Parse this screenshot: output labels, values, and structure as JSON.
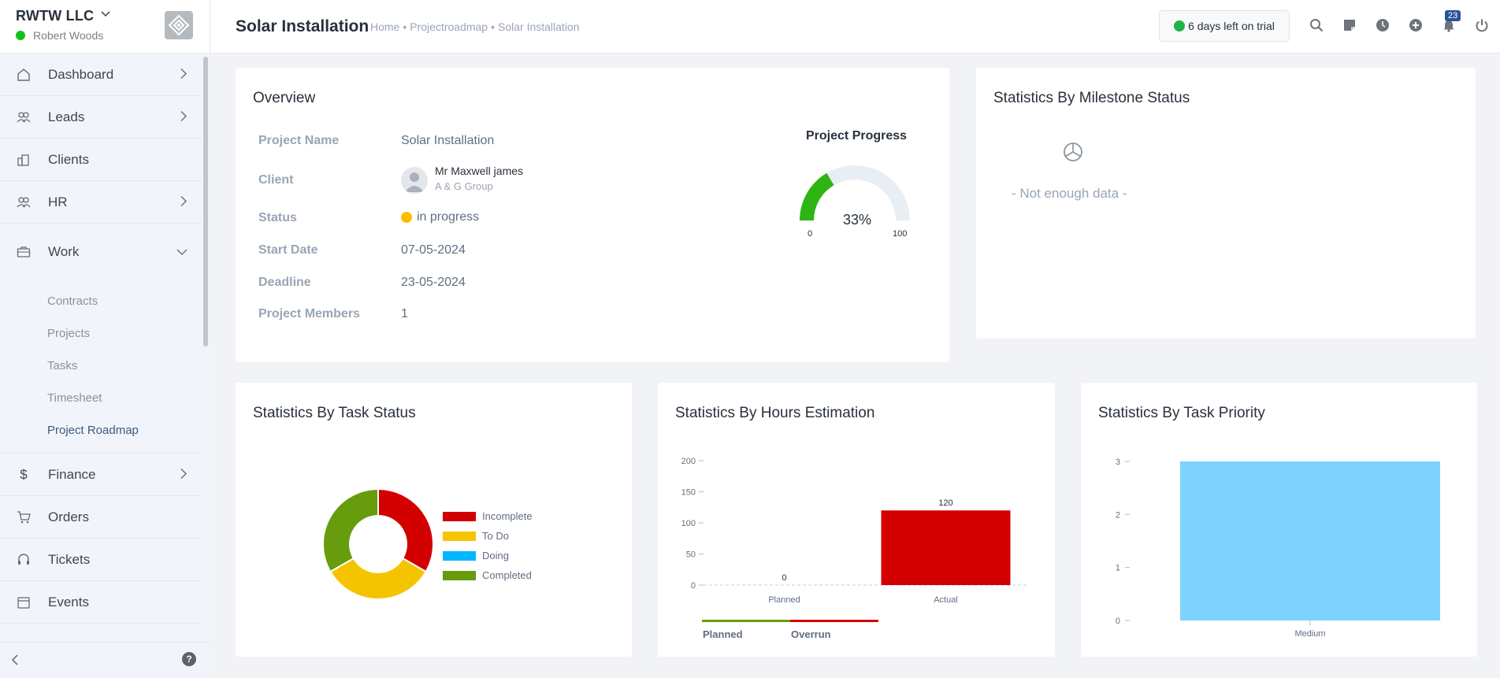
{
  "brand": {
    "company": "RWTW LLC",
    "user": "Robert Woods"
  },
  "nav": {
    "items": [
      {
        "label": "Dashboard",
        "icon": "house-icon",
        "arrow": "right"
      },
      {
        "label": "Leads",
        "icon": "users-icon",
        "arrow": "right"
      },
      {
        "label": "Clients",
        "icon": "building-icon",
        "arrow": ""
      },
      {
        "label": "HR",
        "icon": "people-icon",
        "arrow": "right"
      },
      {
        "label": "Work",
        "icon": "briefcase-icon",
        "arrow": "down"
      }
    ],
    "work_submenu": [
      "Contracts",
      "Projects",
      "Tasks",
      "Timesheet",
      "Project Roadmap"
    ],
    "items_after": [
      {
        "label": "Finance",
        "icon": "dollar-icon",
        "arrow": "right"
      },
      {
        "label": "Orders",
        "icon": "cart-icon",
        "arrow": ""
      },
      {
        "label": "Tickets",
        "icon": "headset-icon",
        "arrow": ""
      },
      {
        "label": "Events",
        "icon": "calendar-icon",
        "arrow": ""
      }
    ]
  },
  "header": {
    "title": "Solar Installation",
    "breadcrumb": [
      "Home",
      "Projectroadmap",
      "Solar Installation"
    ],
    "trial": "6 days left on trial",
    "notification_count": "23"
  },
  "overview": {
    "title": "Overview",
    "labels": {
      "project_name": "Project Name",
      "client": "Client",
      "status": "Status",
      "start_date": "Start Date",
      "deadline": "Deadline",
      "members": "Project Members"
    },
    "values": {
      "project_name": "Solar Installation",
      "client_name": "Mr Maxwell james",
      "client_company": "A & G Group",
      "status": "in progress",
      "start_date": "07-05-2024",
      "deadline": "23-05-2024",
      "members": "1"
    },
    "progress": {
      "title": "Project Progress",
      "value": 33,
      "label": "33%",
      "min": "0",
      "max": "100"
    }
  },
  "milestone": {
    "title": "Statistics By Milestone Status",
    "empty": "- Not enough data -"
  },
  "task_status": {
    "title": "Statistics By Task Status",
    "chart_data": {
      "type": "pie",
      "labels": [
        "Incomplete",
        "To Do",
        "Doing",
        "Completed"
      ],
      "values": [
        1,
        1,
        0,
        1
      ],
      "colors": [
        "#d30000",
        "#f5c400",
        "#00b5ff",
        "#679c0d"
      ]
    }
  },
  "hours": {
    "title": "Statistics By Hours Estimation",
    "chart_data": {
      "type": "bar",
      "categories": [
        "Planned",
        "Actual"
      ],
      "values": [
        0,
        120
      ],
      "ylim": [
        0,
        200
      ],
      "yticks": [
        0,
        50,
        100,
        150,
        200
      ],
      "bar_color": "#d30000"
    },
    "legend": [
      {
        "name": "Planned",
        "color": "#679c0d"
      },
      {
        "name": "Overrun",
        "color": "#d30000"
      }
    ]
  },
  "priority": {
    "title": "Statistics By Task Priority",
    "chart_data": {
      "type": "bar",
      "categories": [
        "Medium"
      ],
      "values": [
        3
      ],
      "ylim": [
        0,
        3
      ],
      "yticks": [
        0,
        1,
        2,
        3
      ],
      "bar_color": "#7dd3fb"
    }
  }
}
